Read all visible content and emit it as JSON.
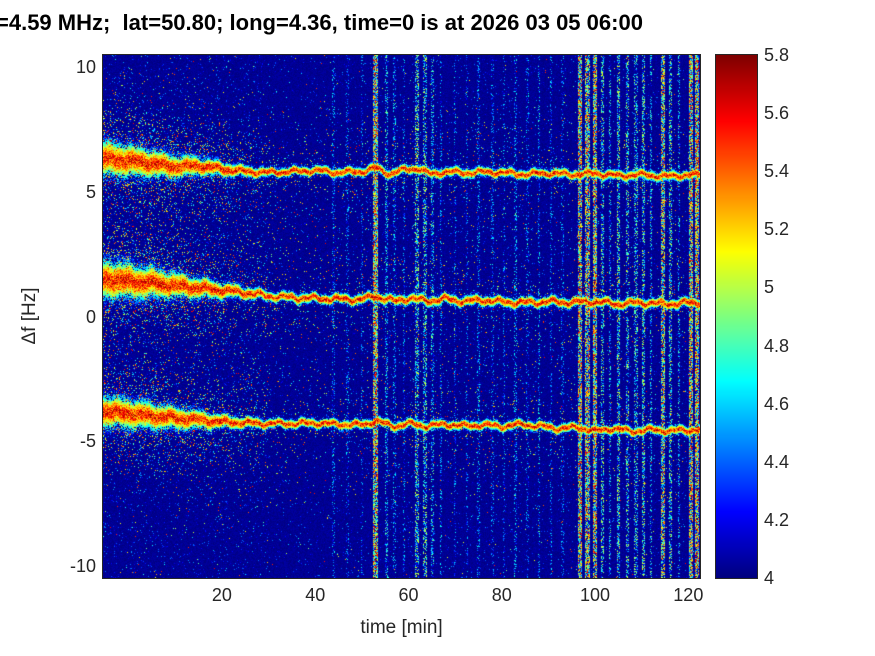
{
  "chart_data": {
    "type": "heatmap",
    "title": "=4.59 MHz;  lat=50.80; long=4.36, time=0 is at 2026 03 05 06:00",
    "xlabel": "time [min]",
    "ylabel": "Δf [Hz]",
    "xlim": [
      -5.5,
      122.5
    ],
    "ylim": [
      -10.5,
      10.5
    ],
    "xticks": [
      20,
      40,
      60,
      80,
      100,
      120
    ],
    "yticks": [
      10,
      5,
      0,
      -5,
      -10
    ],
    "colormap": "jet",
    "grid": false,
    "background_value": 4,
    "colorbar": {
      "min": 4,
      "max": 5.8,
      "ticks": [
        5.8,
        5.6,
        5.4,
        5.2,
        5,
        4.8,
        4.6,
        4.4,
        4.2,
        4
      ],
      "position": "right"
    },
    "traces": [
      {
        "name": "doppler-trace-upper",
        "path_x": [
          -5.5,
          0,
          5,
          10,
          15,
          20,
          25,
          30,
          35,
          40,
          45,
          50,
          53,
          56,
          59,
          62,
          65,
          68,
          72,
          76,
          80,
          85,
          90,
          95,
          100,
          105,
          110,
          115,
          120,
          122.5
        ],
        "path_y": [
          6.35,
          6.25,
          6.15,
          6.0,
          6.05,
          5.92,
          5.82,
          5.78,
          5.82,
          5.86,
          5.78,
          5.82,
          5.96,
          5.72,
          5.88,
          5.95,
          5.7,
          5.82,
          5.76,
          5.8,
          5.78,
          5.7,
          5.76,
          5.7,
          5.74,
          5.65,
          5.7,
          5.62,
          5.68,
          5.68
        ],
        "sigma_x": [
          -5.5,
          0,
          12,
          22,
          30,
          122.5
        ],
        "sigma_y": [
          0.5,
          0.46,
          0.3,
          0.18,
          0.13,
          0.13
        ],
        "cloud_x": [
          -5.5,
          0,
          10,
          20,
          30,
          40,
          122.5
        ],
        "cloud_y": [
          0.55,
          0.5,
          0.38,
          0.25,
          0.12,
          0.06,
          0.05
        ],
        "wiggle": 0.06,
        "peak_value": 5.8
      },
      {
        "name": "doppler-trace-middle",
        "path_x": [
          -5.5,
          0,
          5,
          10,
          15,
          20,
          25,
          30,
          35,
          40,
          45,
          50,
          53,
          57,
          60,
          64,
          68,
          72,
          76,
          80,
          85,
          90,
          95,
          100,
          105,
          110,
          115,
          120,
          122.5
        ],
        "path_y": [
          1.5,
          1.42,
          1.35,
          1.25,
          1.15,
          1.05,
          0.95,
          0.82,
          0.76,
          0.72,
          0.7,
          0.68,
          0.82,
          0.6,
          0.74,
          0.62,
          0.7,
          0.6,
          0.66,
          0.58,
          0.55,
          0.6,
          0.56,
          0.6,
          0.5,
          0.56,
          0.5,
          0.55,
          0.55
        ],
        "sigma_x": [
          -5.5,
          0,
          12,
          22,
          30,
          122.5
        ],
        "sigma_y": [
          0.55,
          0.5,
          0.34,
          0.2,
          0.14,
          0.14
        ],
        "cloud_x": [
          -5.5,
          0,
          10,
          20,
          28,
          38,
          122.5
        ],
        "cloud_y": [
          0.6,
          0.55,
          0.45,
          0.3,
          0.15,
          0.07,
          0.05
        ],
        "wiggle": 0.07,
        "peak_value": 5.8
      },
      {
        "name": "doppler-trace-lower",
        "path_x": [
          -5.5,
          0,
          5,
          10,
          15,
          20,
          25,
          30,
          35,
          40,
          45,
          50,
          53,
          57,
          60,
          64,
          68,
          72,
          76,
          80,
          84,
          88,
          92,
          96,
          100,
          104,
          108,
          112,
          116,
          120,
          122.5
        ],
        "path_y": [
          -3.82,
          -3.9,
          -4.0,
          -4.08,
          -4.15,
          -4.22,
          -4.27,
          -4.3,
          -4.3,
          -4.28,
          -4.33,
          -4.36,
          -4.2,
          -4.42,
          -4.3,
          -4.4,
          -4.33,
          -4.4,
          -4.35,
          -4.42,
          -4.33,
          -4.4,
          -4.5,
          -4.45,
          -4.6,
          -4.5,
          -4.62,
          -4.55,
          -4.6,
          -4.56,
          -4.56
        ],
        "sigma_x": [
          -5.5,
          0,
          12,
          22,
          30,
          122.5
        ],
        "sigma_y": [
          0.45,
          0.42,
          0.3,
          0.18,
          0.13,
          0.13
        ],
        "cloud_x": [
          -5.5,
          0,
          10,
          20,
          30,
          40,
          122.5
        ],
        "cloud_y": [
          0.5,
          0.46,
          0.36,
          0.24,
          0.12,
          0.06,
          0.05
        ],
        "wiggle": 0.06,
        "peak_value": 5.8
      }
    ],
    "interference_lines": [
      {
        "x": 44,
        "w": 0.6,
        "s": 0.15
      },
      {
        "x": 47,
        "w": 0.6,
        "s": 0.12
      },
      {
        "x": 50,
        "w": 0.5,
        "s": 0.1
      },
      {
        "x": 53,
        "w": 1.1,
        "s": 0.95
      },
      {
        "x": 55.2,
        "w": 0.6,
        "s": 0.3
      },
      {
        "x": 57,
        "w": 0.6,
        "s": 0.2
      },
      {
        "x": 59,
        "w": 0.5,
        "s": 0.12
      },
      {
        "x": 61.8,
        "w": 0.8,
        "s": 0.5
      },
      {
        "x": 63.6,
        "w": 0.8,
        "s": 0.45
      },
      {
        "x": 65.2,
        "w": 0.7,
        "s": 0.3
      },
      {
        "x": 67,
        "w": 0.5,
        "s": 0.15
      },
      {
        "x": 70,
        "w": 0.5,
        "s": 0.12
      },
      {
        "x": 72.5,
        "w": 0.5,
        "s": 0.1
      },
      {
        "x": 75,
        "w": 0.6,
        "s": 0.18
      },
      {
        "x": 78,
        "w": 0.5,
        "s": 0.12
      },
      {
        "x": 80.5,
        "w": 0.5,
        "s": 0.1
      },
      {
        "x": 83,
        "w": 0.6,
        "s": 0.2
      },
      {
        "x": 85.5,
        "w": 0.5,
        "s": 0.12
      },
      {
        "x": 88,
        "w": 0.6,
        "s": 0.22
      },
      {
        "x": 90.5,
        "w": 0.5,
        "s": 0.15
      },
      {
        "x": 93,
        "w": 0.5,
        "s": 0.1
      },
      {
        "x": 96.8,
        "w": 1.0,
        "s": 0.9
      },
      {
        "x": 98.4,
        "w": 1.0,
        "s": 0.85
      },
      {
        "x": 100,
        "w": 1.0,
        "s": 0.9
      },
      {
        "x": 101.6,
        "w": 0.7,
        "s": 0.45
      },
      {
        "x": 103.2,
        "w": 0.6,
        "s": 0.3
      },
      {
        "x": 105,
        "w": 0.8,
        "s": 0.5
      },
      {
        "x": 107,
        "w": 0.7,
        "s": 0.45
      },
      {
        "x": 108.8,
        "w": 0.7,
        "s": 0.4
      },
      {
        "x": 110.4,
        "w": 0.8,
        "s": 0.5
      },
      {
        "x": 112,
        "w": 0.6,
        "s": 0.3
      },
      {
        "x": 114.6,
        "w": 1.0,
        "s": 0.8
      },
      {
        "x": 116.2,
        "w": 0.8,
        "s": 0.5
      },
      {
        "x": 118,
        "w": 0.6,
        "s": 0.3
      },
      {
        "x": 120.6,
        "w": 1.0,
        "s": 0.9
      },
      {
        "x": 121.9,
        "w": 0.9,
        "s": 0.95
      }
    ]
  },
  "colors": {
    "figure_background": "#ffffff",
    "axis_text": "#262626",
    "title_text": "#000000",
    "heatmap_low": "#00008f",
    "heatmap_high": "#800000"
  }
}
